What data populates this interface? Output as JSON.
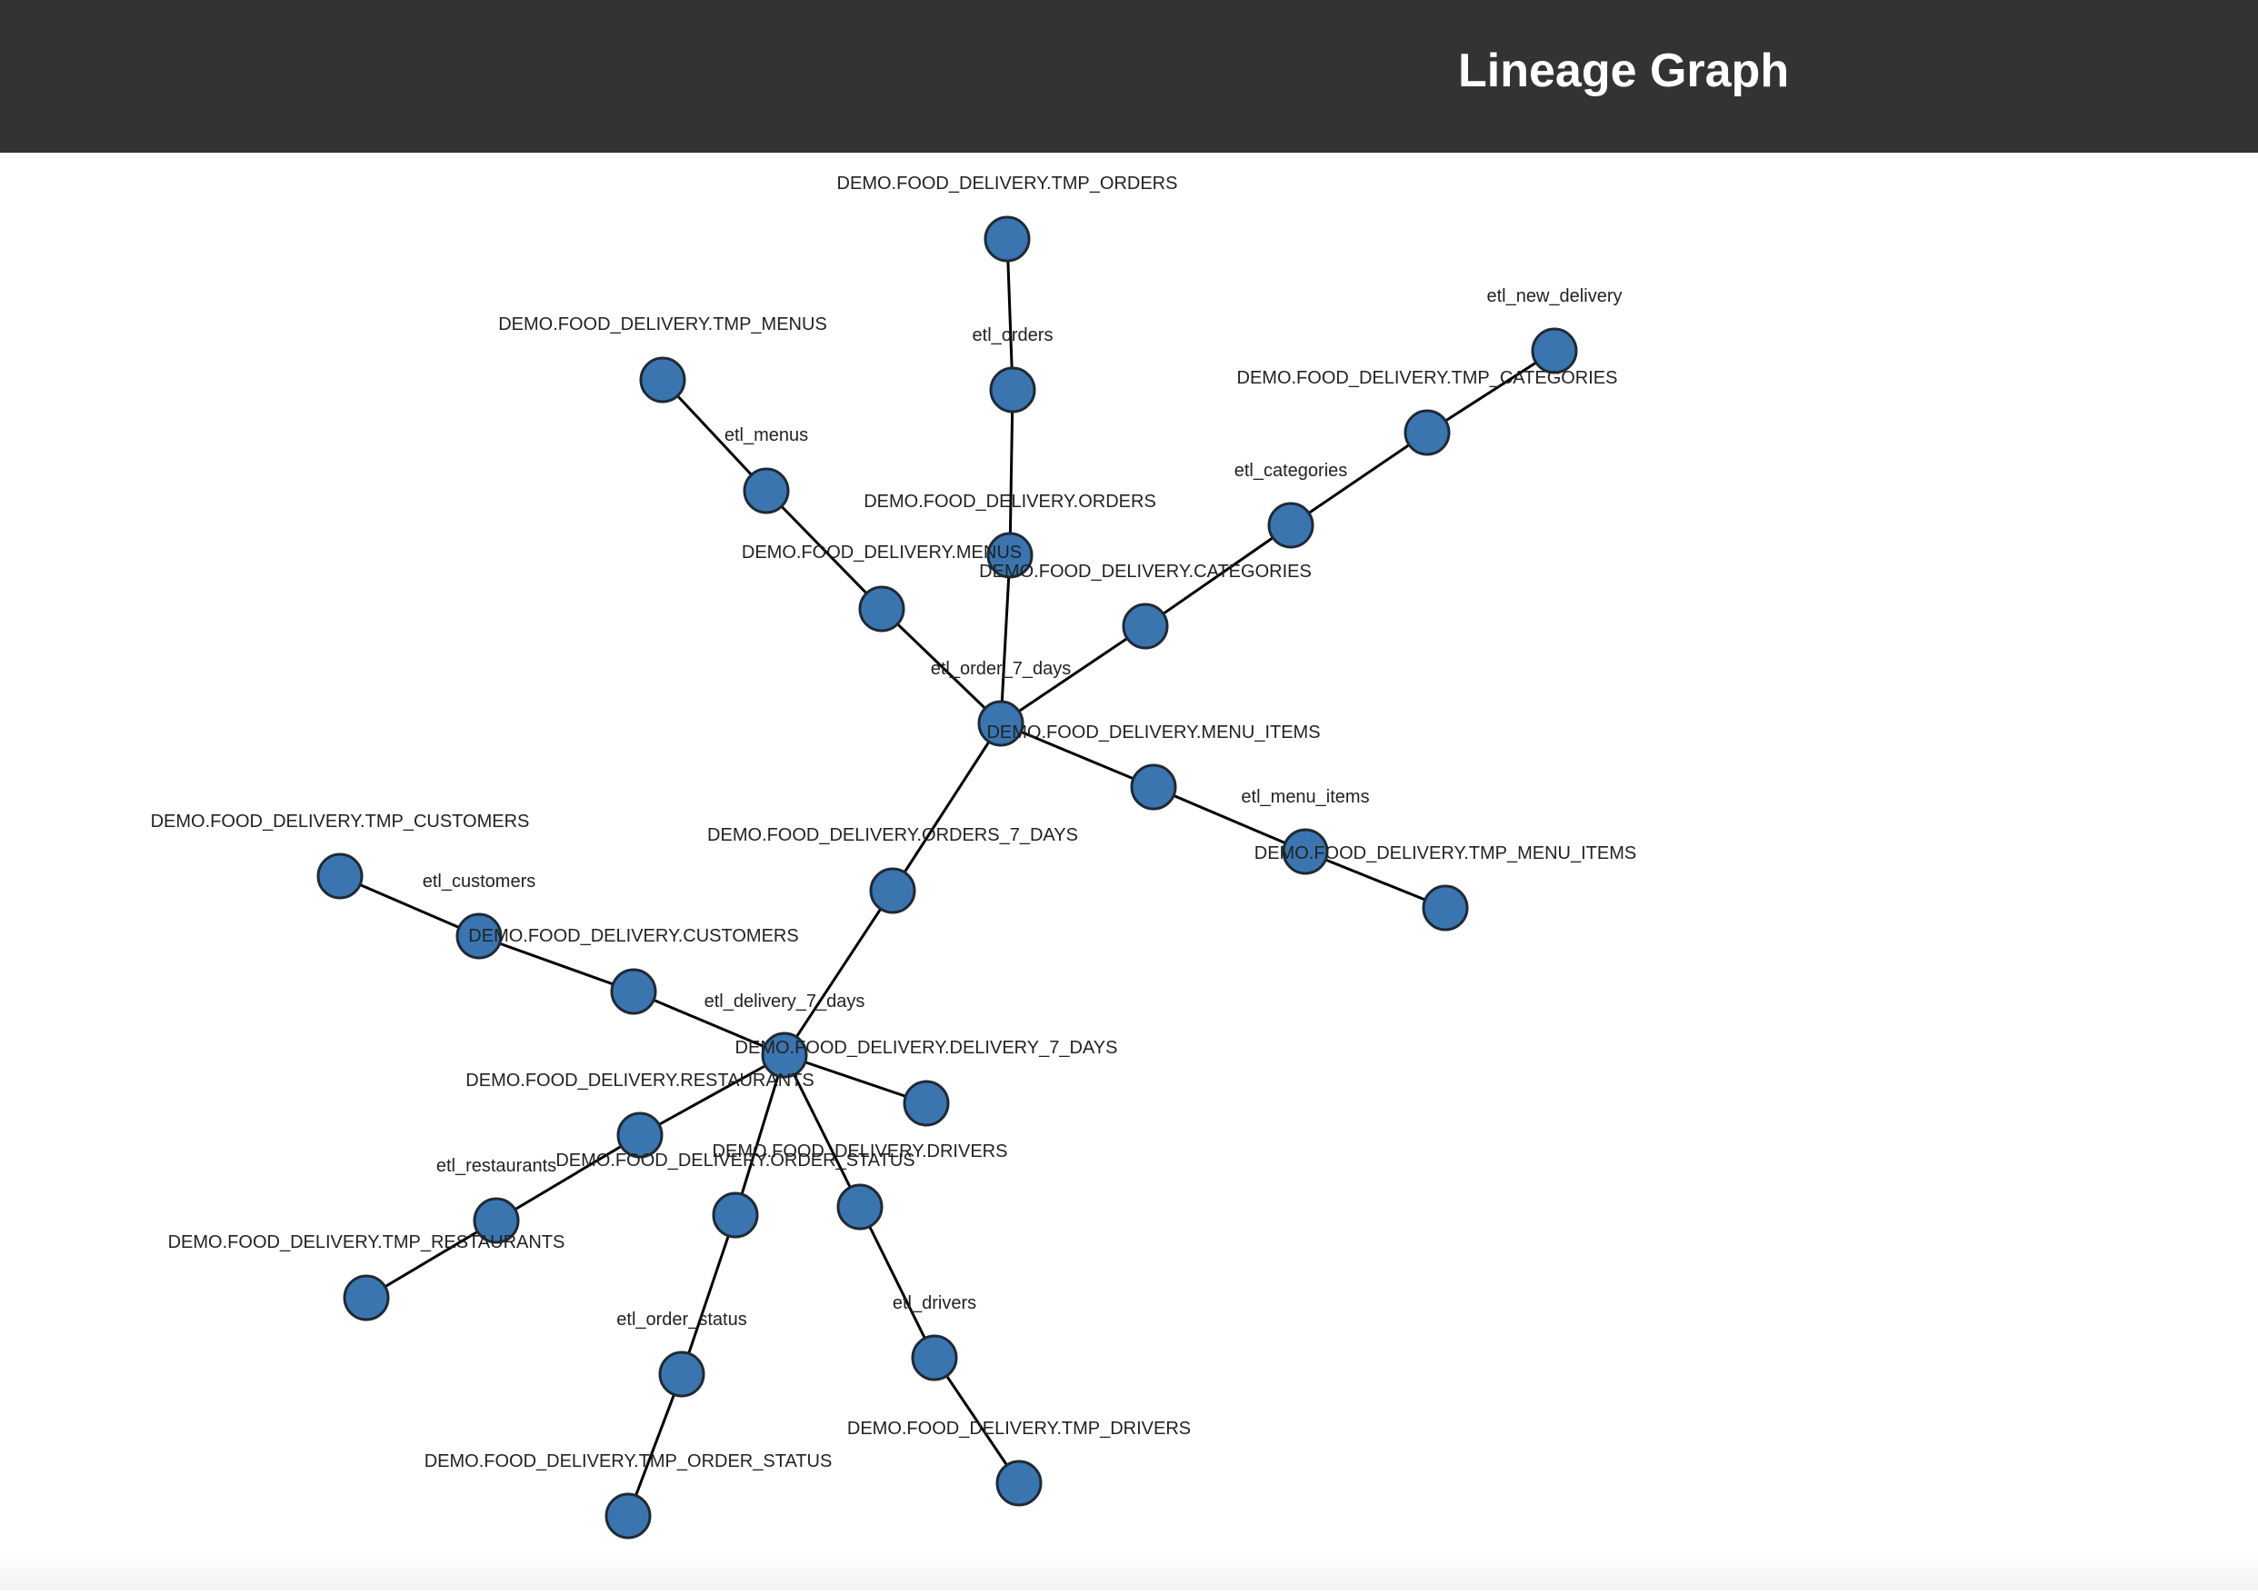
{
  "page": {
    "title": "Lineage Graph"
  },
  "colors": {
    "header_bg": "#333333",
    "header_text": "#ffffff",
    "node_fill": "#3a75b0",
    "node_stroke": "#1f2a35",
    "edge": "#000000",
    "label": "#222222"
  },
  "graph": {
    "nodes": [
      {
        "id": "tmp_orders",
        "label": "DEMO.FOOD_DELIVERY.TMP_ORDERS"
      },
      {
        "id": "etl_orders",
        "label": "etl_orders"
      },
      {
        "id": "orders",
        "label": "DEMO.FOOD_DELIVERY.ORDERS"
      },
      {
        "id": "tmp_menus",
        "label": "DEMO.FOOD_DELIVERY.TMP_MENUS"
      },
      {
        "id": "etl_menus",
        "label": "etl_menus"
      },
      {
        "id": "menus",
        "label": "DEMO.FOOD_DELIVERY.MENUS"
      },
      {
        "id": "etl_new_delivery",
        "label": "etl_new_delivery"
      },
      {
        "id": "tmp_categories",
        "label": "DEMO.FOOD_DELIVERY.TMP_CATEGORIES"
      },
      {
        "id": "etl_categories",
        "label": "etl_categories"
      },
      {
        "id": "categories",
        "label": "DEMO.FOOD_DELIVERY.CATEGORIES"
      },
      {
        "id": "etl_order_7_days",
        "label": "etl_order_7_days"
      },
      {
        "id": "menu_items",
        "label": "DEMO.FOOD_DELIVERY.MENU_ITEMS"
      },
      {
        "id": "etl_menu_items",
        "label": "etl_menu_items"
      },
      {
        "id": "tmp_menu_items",
        "label": "DEMO.FOOD_DELIVERY.TMP_MENU_ITEMS"
      },
      {
        "id": "orders_7_days",
        "label": "DEMO.FOOD_DELIVERY.ORDERS_7_DAYS"
      },
      {
        "id": "tmp_customers",
        "label": "DEMO.FOOD_DELIVERY.TMP_CUSTOMERS"
      },
      {
        "id": "etl_customers",
        "label": "etl_customers"
      },
      {
        "id": "customers",
        "label": "DEMO.FOOD_DELIVERY.CUSTOMERS"
      },
      {
        "id": "etl_delivery_7_days",
        "label": "etl_delivery_7_days"
      },
      {
        "id": "delivery_7_days",
        "label": "DEMO.FOOD_DELIVERY.DELIVERY_7_DAYS"
      },
      {
        "id": "restaurants",
        "label": "DEMO.FOOD_DELIVERY.RESTAURANTS"
      },
      {
        "id": "etl_restaurants",
        "label": "etl_restaurants"
      },
      {
        "id": "tmp_restaurants",
        "label": "DEMO.FOOD_DELIVERY.TMP_RESTAURANTS"
      },
      {
        "id": "order_status",
        "label": "DEMO.FOOD_DELIVERY.ORDER_STATUS"
      },
      {
        "id": "drivers",
        "label": "DEMO.FOOD_DELIVERY.DRIVERS"
      },
      {
        "id": "etl_order_status",
        "label": "etl_order_status"
      },
      {
        "id": "tmp_order_status",
        "label": "DEMO.FOOD_DELIVERY.TMP_ORDER_STATUS"
      },
      {
        "id": "etl_drivers",
        "label": "etl_drivers"
      },
      {
        "id": "tmp_drivers",
        "label": "DEMO.FOOD_DELIVERY.TMP_DRIVERS"
      }
    ],
    "edges": [
      [
        "tmp_orders",
        "etl_orders"
      ],
      [
        "etl_orders",
        "orders"
      ],
      [
        "orders",
        "etl_order_7_days"
      ],
      [
        "tmp_menus",
        "etl_menus"
      ],
      [
        "etl_menus",
        "menus"
      ],
      [
        "menus",
        "etl_order_7_days"
      ],
      [
        "etl_new_delivery",
        "tmp_categories"
      ],
      [
        "tmp_categories",
        "etl_categories"
      ],
      [
        "etl_categories",
        "categories"
      ],
      [
        "categories",
        "etl_order_7_days"
      ],
      [
        "etl_order_7_days",
        "menu_items"
      ],
      [
        "menu_items",
        "etl_menu_items"
      ],
      [
        "etl_menu_items",
        "tmp_menu_items"
      ],
      [
        "etl_order_7_days",
        "orders_7_days"
      ],
      [
        "orders_7_days",
        "etl_delivery_7_days"
      ],
      [
        "tmp_customers",
        "etl_customers"
      ],
      [
        "etl_customers",
        "customers"
      ],
      [
        "customers",
        "etl_delivery_7_days"
      ],
      [
        "etl_delivery_7_days",
        "delivery_7_days"
      ],
      [
        "etl_delivery_7_days",
        "restaurants"
      ],
      [
        "restaurants",
        "etl_restaurants"
      ],
      [
        "etl_restaurants",
        "tmp_restaurants"
      ],
      [
        "etl_delivery_7_days",
        "order_status"
      ],
      [
        "order_status",
        "etl_order_status"
      ],
      [
        "etl_order_status",
        "tmp_order_status"
      ],
      [
        "etl_delivery_7_days",
        "drivers"
      ],
      [
        "drivers",
        "etl_drivers"
      ],
      [
        "etl_drivers",
        "tmp_drivers"
      ]
    ]
  }
}
